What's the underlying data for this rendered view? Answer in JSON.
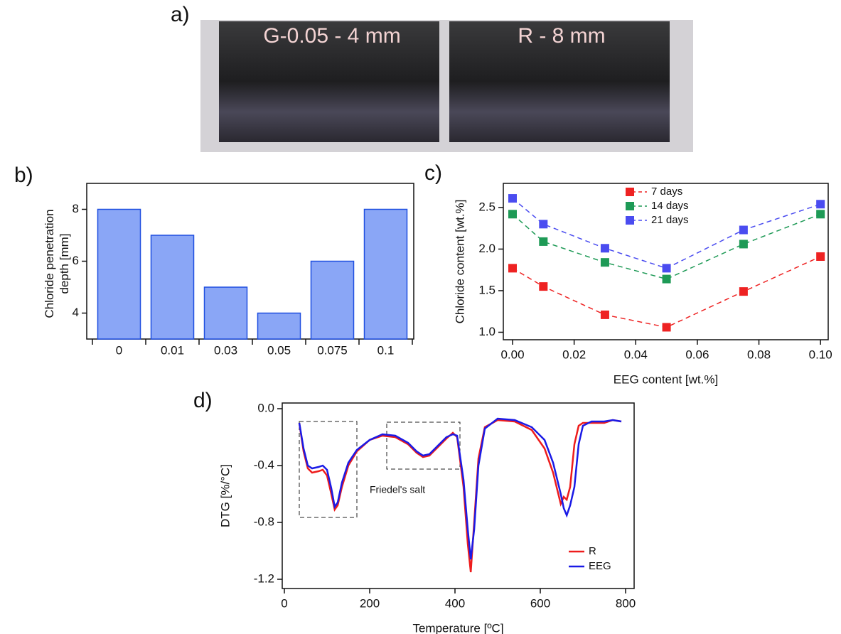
{
  "photo": {
    "label": "a)",
    "captions": [
      "G-0.05 - 4 mm",
      "R - 8 mm"
    ]
  },
  "chart_data": [
    {
      "type": "bar",
      "panel_label": "b)",
      "ylabel": "Chloride penetration depth [mm]",
      "categories": [
        "0",
        "0.01",
        "0.03",
        "0.05",
        "0.075",
        "0.1"
      ],
      "values": [
        8,
        7,
        5,
        4,
        6,
        8
      ],
      "color": "#8aa6f6",
      "edge_color": "#1f4fe0",
      "ylim": [
        3,
        9
      ],
      "yticks": [
        4,
        6,
        8
      ]
    },
    {
      "type": "line",
      "panel_label": "c)",
      "markers": "square",
      "linestyle": "dashed",
      "xlabel": "EEG content [wt.%]",
      "ylabel": "Chloride content [wt.%]",
      "x": [
        0,
        0.01,
        0.03,
        0.05,
        0.075,
        0.1
      ],
      "series": [
        {
          "name": "7 days",
          "color": "#ee2222",
          "values": [
            1.77,
            1.55,
            1.21,
            1.06,
            1.49,
            1.91
          ]
        },
        {
          "name": "14 days",
          "color": "#1e9a56",
          "values": [
            2.42,
            2.09,
            1.84,
            1.64,
            2.06,
            2.42
          ]
        },
        {
          "name": "21 days",
          "color": "#4a4cf0",
          "values": [
            2.61,
            2.3,
            2.01,
            1.77,
            2.23,
            2.54
          ]
        }
      ],
      "xlim": [
        -0.003,
        0.1025
      ],
      "xticks": [
        {
          "value": 0,
          "label": "0.00"
        },
        {
          "value": 0.02,
          "label": "0.02"
        },
        {
          "value": 0.04,
          "label": "0.04"
        },
        {
          "value": 0.06,
          "label": "0.06"
        },
        {
          "value": 0.08,
          "label": "0.08"
        },
        {
          "value": 0.1,
          "label": "0.10"
        }
      ],
      "ylim": [
        0.91,
        2.79
      ],
      "yticks": [
        {
          "value": 1,
          "label": "1.0"
        },
        {
          "value": 1.5,
          "label": "1.5"
        },
        {
          "value": 2,
          "label": "2.0"
        },
        {
          "value": 2.5,
          "label": "2.5"
        }
      ],
      "legend": "upper center"
    },
    {
      "type": "line",
      "panel_label": "d)",
      "markers": "none",
      "linestyle": "solid",
      "xlabel": "Temperature [ºC]",
      "ylabel": "DTG [%/°C]",
      "annotation": "Friedel's salt",
      "x": [
        35,
        45,
        55,
        65,
        80,
        90,
        100,
        110,
        118,
        125,
        135,
        150,
        170,
        200,
        230,
        260,
        290,
        310,
        325,
        340,
        360,
        380,
        395,
        405,
        420,
        430,
        437,
        445,
        455,
        470,
        500,
        540,
        580,
        610,
        630,
        648,
        655,
        662,
        670,
        680,
        690,
        700,
        720,
        750,
        770,
        790
      ],
      "series": [
        {
          "name": "R",
          "color": "#ee1c1c",
          "values": [
            -0.1,
            -0.3,
            -0.42,
            -0.45,
            -0.44,
            -0.43,
            -0.47,
            -0.6,
            -0.71,
            -0.68,
            -0.55,
            -0.4,
            -0.3,
            -0.22,
            -0.19,
            -0.2,
            -0.25,
            -0.31,
            -0.34,
            -0.33,
            -0.27,
            -0.21,
            -0.17,
            -0.2,
            -0.55,
            -0.95,
            -1.15,
            -0.8,
            -0.35,
            -0.13,
            -0.08,
            -0.09,
            -0.15,
            -0.28,
            -0.45,
            -0.67,
            -0.62,
            -0.64,
            -0.55,
            -0.25,
            -0.12,
            -0.1,
            -0.1,
            -0.1,
            -0.08,
            -0.09
          ]
        },
        {
          "name": "EEG",
          "color": "#1a1ae6",
          "values": [
            -0.1,
            -0.28,
            -0.4,
            -0.42,
            -0.41,
            -0.4,
            -0.43,
            -0.56,
            -0.69,
            -0.66,
            -0.52,
            -0.38,
            -0.29,
            -0.22,
            -0.18,
            -0.19,
            -0.24,
            -0.3,
            -0.33,
            -0.32,
            -0.26,
            -0.2,
            -0.18,
            -0.19,
            -0.5,
            -0.85,
            -1.06,
            -0.85,
            -0.4,
            -0.14,
            -0.07,
            -0.08,
            -0.13,
            -0.22,
            -0.38,
            -0.6,
            -0.7,
            -0.75,
            -0.68,
            -0.55,
            -0.25,
            -0.12,
            -0.09,
            -0.09,
            -0.08,
            -0.09
          ]
        }
      ],
      "xlim": [
        -5,
        820
      ],
      "xticks": [
        0,
        200,
        400,
        600,
        800
      ],
      "ylim": [
        -1.265,
        0.04
      ],
      "yticks": [
        {
          "value": 0,
          "label": "0.0"
        },
        -0.4,
        -0.8,
        -1.2
      ],
      "legend": "lower right"
    }
  ]
}
